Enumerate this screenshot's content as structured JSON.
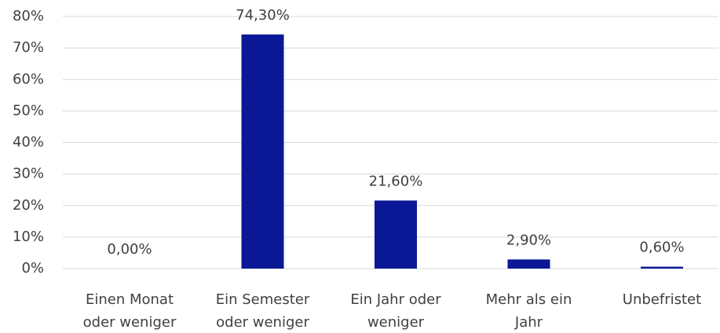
{
  "chart_data": {
    "type": "bar",
    "categories": [
      [
        "Einen Monat",
        "oder weniger"
      ],
      [
        "Ein Semester",
        "oder weniger"
      ],
      [
        "Ein Jahr oder",
        "weniger"
      ],
      [
        "Mehr als ein",
        "Jahr"
      ],
      [
        "Unbefristet"
      ]
    ],
    "values": [
      0,
      74.3,
      21.6,
      2.9,
      0.6
    ],
    "value_labels": [
      "0,00%",
      "74,30%",
      "21,60%",
      "2,90%",
      "0,60%"
    ],
    "color": "#0a1896",
    "ylim": [
      0,
      80
    ],
    "yticks": [
      {
        "value": 0,
        "label": "0%"
      },
      {
        "value": 10,
        "label": "10%"
      },
      {
        "value": 20,
        "label": "20%"
      },
      {
        "value": 30,
        "label": "30%"
      },
      {
        "value": 40,
        "label": "40%"
      },
      {
        "value": 50,
        "label": "50%"
      },
      {
        "value": 60,
        "label": "60%"
      },
      {
        "value": 70,
        "label": "70%"
      },
      {
        "value": 80,
        "label": "80%"
      }
    ],
    "grid": true
  }
}
